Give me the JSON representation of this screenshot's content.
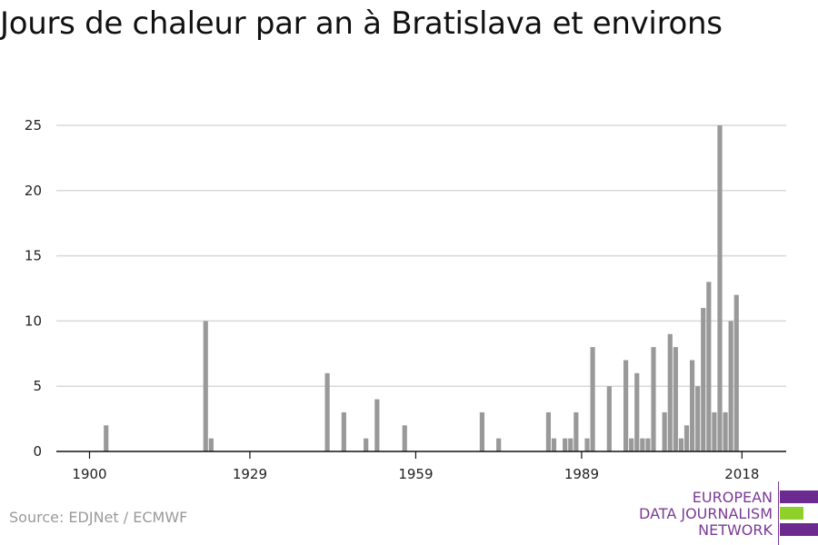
{
  "title": "Jours de chaleur par an à Bratislava et environs",
  "source": "Source: EDJNet / ECMWF",
  "logo": {
    "line1": "EUROPEAN",
    "line2": "DATA JOURNALISM",
    "line3": "NETWORK",
    "colors": {
      "purple": "#6a2a8f",
      "green": "#8fd12b"
    }
  },
  "chart_data": {
    "type": "bar",
    "title": "Jours de chaleur par an à Bratislava et environs",
    "xlabel": "",
    "ylabel": "",
    "xlim": [
      1894,
      2026
    ],
    "ylim": [
      0,
      25
    ],
    "yticks": [
      0,
      5,
      10,
      15,
      20,
      25
    ],
    "xticks": [
      1900,
      1929,
      1959,
      1989,
      2018
    ],
    "grid": true,
    "legend": "none",
    "bar_color": "#999999",
    "x": [
      1903,
      1921,
      1922,
      1943,
      1946,
      1950,
      1952,
      1957,
      1971,
      1974,
      1983,
      1984,
      1986,
      1987,
      1988,
      1990,
      1991,
      1992,
      1994,
      1997,
      1998,
      1999,
      2000,
      2001,
      2002,
      2004,
      2005,
      2006,
      2007,
      2008,
      2009,
      2010,
      2011,
      2012,
      2013,
      2014,
      2015,
      2016,
      2017,
      2018
    ],
    "values": [
      2,
      10,
      1,
      6,
      3,
      1,
      4,
      2,
      3,
      1,
      3,
      1,
      1,
      1,
      3,
      1,
      8,
      0,
      5,
      7,
      1,
      6,
      1,
      1,
      8,
      3,
      9,
      8,
      1,
      2,
      7,
      5,
      11,
      13,
      3,
      25,
      3,
      10,
      12,
      0
    ]
  }
}
